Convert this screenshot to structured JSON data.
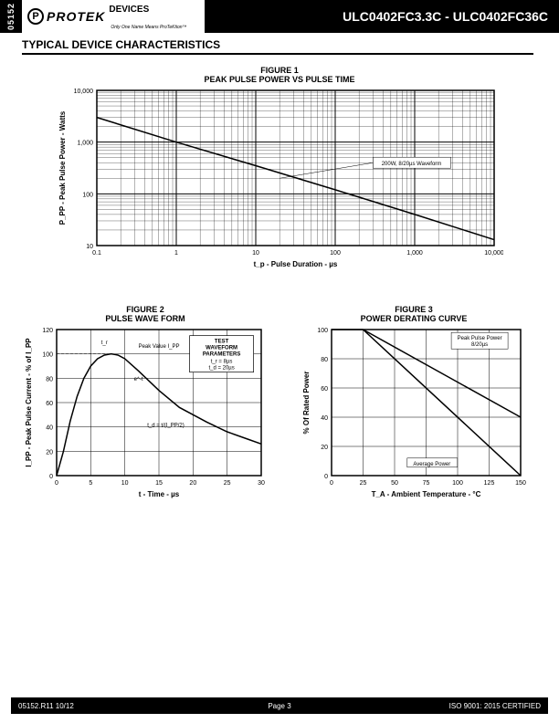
{
  "header": {
    "doc_id": "05152",
    "logo_brand": "PROTEK",
    "logo_suffix": "DEVICES",
    "logo_tagline": "Only One Name Means ProTeKtion™",
    "product_range": "ULC0402FC3.3C - ULC0402FC36C"
  },
  "section_title": "TYPICAL DEVICE CHARACTERISTICS",
  "figure1": {
    "label": "FIGURE 1",
    "title": "PEAK PULSE POWER VS PULSE TIME",
    "ylabel": "P_PP - Peak Pulse Power - Watts",
    "xlabel": "t_p - Pulse Duration - µs",
    "x_scale": "log",
    "y_scale": "log",
    "xlim": [
      0.1,
      10000
    ],
    "ylim": [
      10,
      10000
    ],
    "x_ticks": [
      "0.1",
      "1",
      "10",
      "100",
      "1,000",
      "10,000"
    ],
    "y_ticks": [
      "10",
      "100",
      "1,000",
      "10,000"
    ],
    "line_points": [
      [
        0.1,
        3000
      ],
      [
        1,
        1000
      ],
      [
        10,
        350
      ],
      [
        100,
        120
      ],
      [
        1000,
        40
      ],
      [
        10000,
        13
      ]
    ],
    "line_color": "#000000",
    "line_width": 1.5,
    "annotation": "200W, 8/20µs Waveform",
    "grid_color": "#000000",
    "background_color": "#ffffff"
  },
  "figure2": {
    "label": "FIGURE 2",
    "title": "PULSE WAVE FORM",
    "ylabel": "I_PP - Peak Pulse Current - % of I_PP",
    "xlabel": "t - Time - µs",
    "xlim": [
      0,
      30
    ],
    "ylim": [
      0,
      120
    ],
    "x_ticks": [
      0,
      5,
      10,
      15,
      20,
      25,
      30
    ],
    "y_ticks": [
      0,
      20,
      40,
      60,
      80,
      100,
      120
    ],
    "curve": [
      [
        0,
        0
      ],
      [
        1,
        20
      ],
      [
        2,
        45
      ],
      [
        3,
        65
      ],
      [
        4,
        80
      ],
      [
        5,
        90
      ],
      [
        6,
        96
      ],
      [
        7,
        99
      ],
      [
        8,
        100
      ],
      [
        9,
        99
      ],
      [
        10,
        96
      ],
      [
        12,
        86
      ],
      [
        15,
        70
      ],
      [
        18,
        56
      ],
      [
        20,
        50
      ],
      [
        22,
        44
      ],
      [
        25,
        36
      ],
      [
        28,
        30
      ],
      [
        30,
        26
      ]
    ],
    "line_color": "#000000",
    "line_width": 1.5,
    "grid_color": "#000000",
    "box_title": "TEST WAVEFORM PARAMETERS",
    "box_lines": [
      "t_r = 8µs",
      "t_d = 20µs"
    ],
    "annot_peak": "Peak Value I_PP",
    "annot_tr": "t_r",
    "annot_et": "e^-t",
    "annot_td": "t_d = t/(I_PP/2)"
  },
  "figure3": {
    "label": "FIGURE 3",
    "title": "POWER DERATING CURVE",
    "ylabel": "% Of Rated Power",
    "xlabel": "T_A - Ambient Temperature - °C",
    "xlim": [
      0,
      150
    ],
    "ylim": [
      0,
      100
    ],
    "x_ticks": [
      0,
      25,
      50,
      75,
      100,
      125,
      150
    ],
    "y_ticks": [
      0,
      20,
      40,
      60,
      80,
      100
    ],
    "line1": [
      [
        25,
        100
      ],
      [
        150,
        0
      ]
    ],
    "line1_label": "Average Power",
    "line2": [
      [
        25,
        100
      ],
      [
        150,
        40
      ]
    ],
    "line2_label": "Peak Pulse Power 8/20µs",
    "line_color": "#000000",
    "line_width": 1.5,
    "grid_color": "#000000"
  },
  "footer": {
    "left": "05152.R11 10/12",
    "center": "Page 3",
    "right": "ISO 9001: 2015 CERTIFIED"
  }
}
